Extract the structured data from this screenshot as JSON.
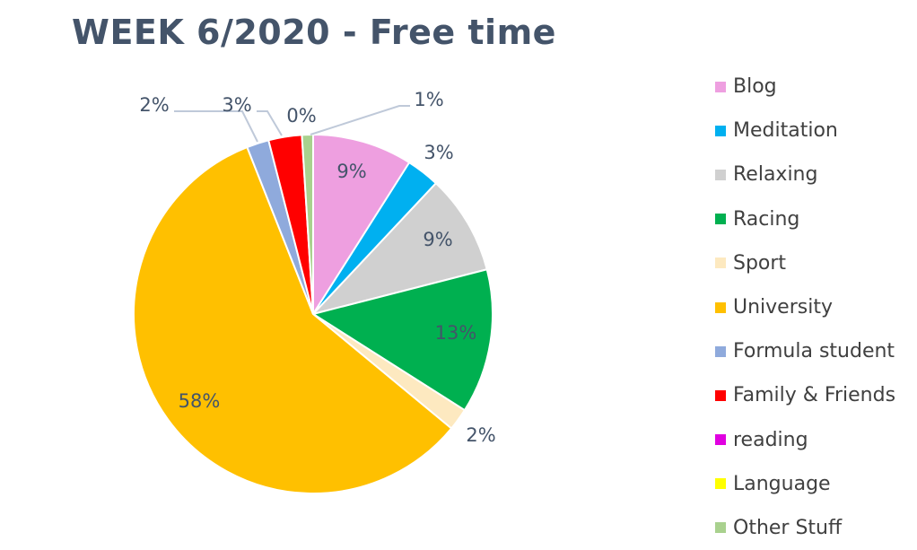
{
  "chart_data": {
    "type": "pie",
    "title": "WEEK 6/2020 - Free time",
    "legend_position": "right",
    "start_angle": "top, clockwise",
    "slices": [
      {
        "name": "Blog",
        "value": 9,
        "label": "9%",
        "color": "#ee9fe0"
      },
      {
        "name": "Meditation",
        "value": 3,
        "label": "3%",
        "color": "#00b0f0"
      },
      {
        "name": "Relaxing",
        "value": 9,
        "label": "9%",
        "color": "#d0d0d0"
      },
      {
        "name": "Racing",
        "value": 13,
        "label": "13%",
        "color": "#00b050"
      },
      {
        "name": "Sport",
        "value": 2,
        "label": "2%",
        "color": "#fde9c0"
      },
      {
        "name": "University",
        "value": 58,
        "label": "58%",
        "color": "#ffc000"
      },
      {
        "name": "Formula student",
        "value": 2,
        "label": "2%",
        "color": "#8faadc"
      },
      {
        "name": "Family & Friends",
        "value": 3,
        "label": "3%",
        "color": "#ff0000"
      },
      {
        "name": "reading",
        "value": 0,
        "label": "",
        "color": "#e000e0"
      },
      {
        "name": "Language",
        "value": 0,
        "label": "0%",
        "color": "#ffff00"
      },
      {
        "name": "Other Stuff",
        "value": 1,
        "label": "1%",
        "color": "#a9d18e"
      }
    ]
  }
}
